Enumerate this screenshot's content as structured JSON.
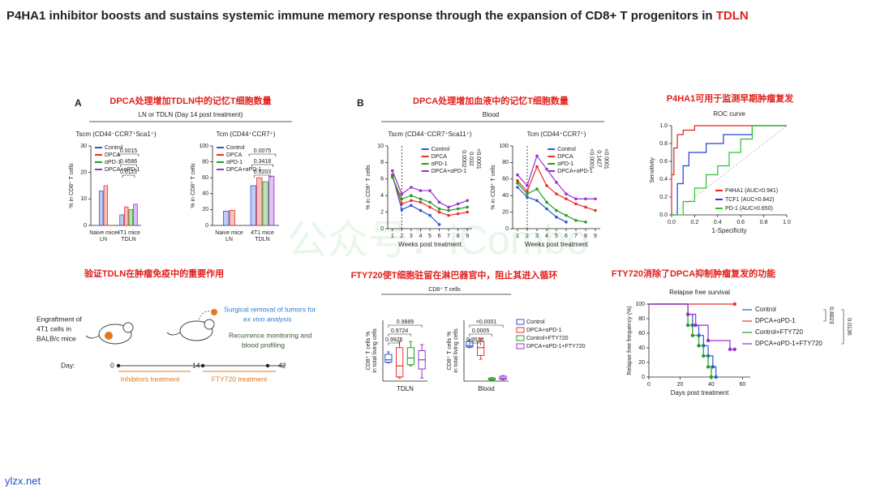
{
  "title": "P4HA1 inhibitor boosts and sustains systemic immune memory response through the expansion of CD8+ T progenitors in ",
  "title_highlight": "TDLN",
  "watermark": "公众号：iCombo",
  "footer": "ylzx.net",
  "sections": {
    "a": {
      "letter": "A",
      "heading": "DPCA处理增加TDLN中的记忆T细胞数量",
      "subtitle": "LN or TDLN (Day 14 post treatment)"
    },
    "b": {
      "letter": "B",
      "heading": "DPCA处理增加血液中的记忆T细胞数量",
      "subtitle": "Blood"
    },
    "roc": {
      "heading": "P4HA1可用于监测早期肿瘤复发"
    },
    "tdln": {
      "heading": "验证TDLN在肿瘤免疫中的重要作用"
    },
    "fty": {
      "heading": "FTY720使T细胞驻留在淋巴器官中，阻止其进入循环",
      "subtitle": "CD8⁺ T cells"
    },
    "rfs": {
      "heading": "FTY720消除了DPCA抑制肿瘤复发的功能"
    }
  },
  "diagram": {
    "engraftment": [
      "Engraftment of",
      "4T1 cells in",
      "BALB/c mice"
    ],
    "surgery": [
      "Surgical removal of tumors for",
      "ex vivo analysis"
    ],
    "monitoring": [
      "Recurrence monitoring and",
      "blood profiling"
    ],
    "day_label": "Day:",
    "days": [
      0,
      14,
      42
    ],
    "treatments": [
      "Inhibitors treatment",
      "FTY720 treatment"
    ]
  },
  "charts": [
    {
      "type": "bar",
      "title": "Tscm (CD44⁻CCR7⁺Sca1⁺)",
      "y_label": "% in CD8⁺ T cells",
      "categories": [
        [
          "Naive mice",
          "LN"
        ],
        [
          "4T1 mice",
          "TDLN"
        ]
      ],
      "series": [
        {
          "name": "Control",
          "color": "#2f55d4",
          "values": [
            13,
            4
          ]
        },
        {
          "name": "DPCA",
          "color": "#e8312b",
          "values": [
            15,
            7
          ]
        },
        {
          "name": "αPD-1",
          "color": "#20a020",
          "values": [
            null,
            6
          ]
        },
        {
          "name": "DPCA+αPD-1",
          "color": "#9b2fd0",
          "values": [
            null,
            8
          ]
        }
      ],
      "ylim": [
        0,
        30
      ],
      "yticks": [
        0,
        10,
        20,
        30
      ],
      "legend": "upper left",
      "comparisons": [
        "0.0015",
        "0.4586",
        "0.0113"
      ]
    },
    {
      "type": "bar",
      "title": "Tcm (CD44⁺CCR7⁺)",
      "y_label": "% in CD8⁺ T cells",
      "categories": [
        [
          "Naive mice",
          "LN"
        ],
        [
          "4T1 mice",
          "TDLN"
        ]
      ],
      "series": [
        {
          "name": "Control",
          "color": "#2f55d4",
          "values": [
            18,
            50
          ]
        },
        {
          "name": "DPCA",
          "color": "#e8312b",
          "values": [
            19,
            60
          ]
        },
        {
          "name": "αPD-1",
          "color": "#20a020",
          "values": [
            null,
            55
          ]
        },
        {
          "name": "DPCA+αPD-1",
          "color": "#9b2fd0",
          "values": [
            null,
            62
          ]
        }
      ],
      "ylim": [
        0,
        100
      ],
      "yticks": [
        0,
        20,
        40,
        60,
        80,
        100
      ],
      "legend": "upper left",
      "comparisons": [
        "0.0075",
        "0.3418",
        "0.0203"
      ]
    },
    {
      "type": "line",
      "title": "Tscm (CD44⁻CCR7⁺Sca11⁺)",
      "y_label": "% in CD8⁺ T cells",
      "x_label": "Weeks post treatment",
      "x": [
        1,
        2,
        3,
        4,
        5,
        6,
        7,
        8,
        9
      ],
      "xlim": [
        0.5,
        9.5
      ],
      "xticks": [
        1,
        2,
        3,
        4,
        5,
        6,
        7,
        8,
        9
      ],
      "ylim": [
        0,
        10
      ],
      "yticks": [
        0,
        2,
        4,
        6,
        8,
        10
      ],
      "vline": 2,
      "markers": true,
      "legend": "upper center",
      "series": [
        {
          "name": "Control",
          "color": "#2f55d4",
          "values": [
            6.5,
            2.3,
            2.8,
            2.2,
            1.6,
            0.5,
            null,
            null,
            null
          ]
        },
        {
          "name": "DPCA",
          "color": "#e8312b",
          "values": [
            6.4,
            3.0,
            3.4,
            3.2,
            2.6,
            2.0,
            1.6,
            1.8,
            2.0
          ]
        },
        {
          "name": "αPD-1",
          "color": "#20a020",
          "values": [
            6.2,
            3.6,
            4.0,
            3.6,
            3.2,
            2.4,
            2.2,
            2.4,
            2.6
          ]
        },
        {
          "name": "DPCA+αPD-1",
          "color": "#9b2fd0",
          "values": [
            7.0,
            4.2,
            5.0,
            4.6,
            4.6,
            3.2,
            2.6,
            3.0,
            3.4
          ]
        }
      ],
      "comparisons": [
        "0.0002",
        "0.032",
        "<0.0001"
      ]
    },
    {
      "type": "line",
      "title": "Tcm (CD44⁺CCR7⁺)",
      "y_label": "% in CD8⁺ T cells",
      "x_label": "Weeks post treatment",
      "x": [
        1,
        2,
        3,
        4,
        5,
        6,
        7,
        8,
        9
      ],
      "xlim": [
        0.5,
        9.5
      ],
      "xticks": [
        1,
        2,
        3,
        4,
        5,
        6,
        7,
        8,
        9
      ],
      "ylim": [
        0,
        100
      ],
      "yticks": [
        0,
        20,
        40,
        60,
        80,
        100
      ],
      "vline": 2,
      "markers": true,
      "legend": "upper center",
      "series": [
        {
          "name": "Control",
          "color": "#2f55d4",
          "values": [
            50,
            38,
            34,
            24,
            14,
            8,
            null,
            null,
            null
          ]
        },
        {
          "name": "DPCA",
          "color": "#e8312b",
          "values": [
            58,
            45,
            75,
            52,
            42,
            36,
            30,
            26,
            22
          ]
        },
        {
          "name": "αPD-1",
          "color": "#20a020",
          "values": [
            55,
            42,
            48,
            32,
            22,
            16,
            10,
            8,
            null
          ]
        },
        {
          "name": "DPCA+αPD-1",
          "color": "#9b2fd0",
          "values": [
            65,
            52,
            88,
            72,
            56,
            42,
            36,
            36,
            36
          ]
        }
      ],
      "comparisons": [
        "<0.0001",
        "0.1427",
        "<0.0001"
      ]
    },
    {
      "type": "line",
      "title": "ROC curve",
      "y_label": "Sensitivity",
      "x_label": "1-Specificity",
      "xlim": [
        0,
        1
      ],
      "ylim": [
        0,
        1
      ],
      "xticks": [
        {
          "value": 0,
          "label": "0.0"
        },
        0.2,
        0.4,
        0.6,
        0.8,
        {
          "value": 1,
          "label": "1.0"
        }
      ],
      "yticks": [
        {
          "value": 0,
          "label": "0.0"
        },
        0.2,
        0.4,
        0.6,
        0.8,
        {
          "value": 1,
          "label": "1.0"
        }
      ],
      "diagonal": true,
      "legend": "lower right",
      "series": [
        {
          "name": "P4HA1 (AUC=0.941)",
          "color": "#e8201c",
          "x": [
            0,
            0,
            0.02,
            0.02,
            0.05,
            0.05,
            0.1,
            0.1,
            0.2,
            0.2,
            1
          ],
          "values": [
            0,
            0.45,
            0.45,
            0.75,
            0.75,
            0.9,
            0.9,
            0.95,
            0.95,
            1,
            1
          ]
        },
        {
          "name": "TCF1 (AUC=0.842)",
          "color": "#2040e0",
          "x": [
            0,
            0.05,
            0.05,
            0.1,
            0.1,
            0.15,
            0.15,
            0.3,
            0.3,
            0.45,
            0.45,
            0.7,
            0.7,
            1
          ],
          "values": [
            0,
            0,
            0.35,
            0.35,
            0.55,
            0.55,
            0.7,
            0.7,
            0.8,
            0.8,
            0.9,
            0.9,
            1,
            1
          ]
        },
        {
          "name": "PD-1 (AUC=0.650)",
          "color": "#30c030",
          "x": [
            0,
            0.1,
            0.1,
            0.2,
            0.2,
            0.3,
            0.3,
            0.4,
            0.4,
            0.5,
            0.5,
            0.6,
            0.6,
            0.7,
            0.7,
            1
          ],
          "values": [
            0,
            0,
            0.15,
            0.15,
            0.3,
            0.3,
            0.45,
            0.45,
            0.55,
            0.55,
            0.7,
            0.7,
            0.85,
            0.85,
            1,
            1
          ]
        }
      ]
    },
    {
      "type": "box",
      "x_label": "TDLN",
      "y_label": [
        "CD8⁺ T cells %",
        "in total living cells"
      ],
      "ylim": [
        0,
        10
      ],
      "series": [
        {
          "color": "#2f55d4",
          "min": 3.0,
          "q1": 3.1,
          "median": 3.5,
          "q3": 4.4,
          "max": 4.8
        },
        {
          "color": "#e8312b",
          "min": 0.5,
          "q1": 0.7,
          "median": 2.5,
          "q3": 5.5,
          "max": 6.5
        },
        {
          "color": "#20a020",
          "min": 2.5,
          "q1": 2.7,
          "median": 3.8,
          "q3": 5.5,
          "max": 6.5
        },
        {
          "color": "#9b2fd0",
          "min": 0.5,
          "q1": 2.0,
          "median": 3.5,
          "q3": 5.0,
          "max": 6.0
        }
      ],
      "comparisons": [
        "0.9889",
        "0.9724",
        "0.9926"
      ]
    },
    {
      "type": "box",
      "x_label": "Blood",
      "y_label": [
        "CD8⁺ T cells %",
        "in total living cells"
      ],
      "ylim": [
        0,
        10
      ],
      "legend": "outside right",
      "series": [
        {
          "name": "Control",
          "color": "#2f55d4",
          "min": 5.5,
          "q1": 5.6,
          "median": 5.8,
          "q3": 6.5,
          "max": 6.8
        },
        {
          "name": "DPCA+αPD-1",
          "color": "#e8312b",
          "min": 3.6,
          "q1": 4.2,
          "median": 5.5,
          "q3": 6.5,
          "max": 7.0
        },
        {
          "name": "Control+FTY720",
          "color": "#20a020",
          "min": 0.1,
          "q1": 0.2,
          "median": 0.3,
          "q3": 0.5,
          "max": 0.6
        },
        {
          "name": "DPCA+αPD-1+FTY720",
          "color": "#9b2fd0",
          "min": 0.2,
          "q1": 0.3,
          "median": 0.5,
          "q3": 0.8,
          "max": 0.9
        }
      ],
      "comparisons": [
        "<0.0001",
        "0.0005",
        "0.9533"
      ]
    },
    {
      "type": "step",
      "title": "Relapse free survival",
      "y_label": "Relapse free frequency (%)",
      "x_label": "Days post treatment",
      "xlim": [
        0,
        65
      ],
      "xticks": [
        0,
        20,
        40,
        60
      ],
      "ylim": [
        0,
        100
      ],
      "yticks": [
        0,
        20,
        40,
        60,
        80,
        100
      ],
      "legend": "outside right",
      "series": [
        {
          "name": "Control",
          "color": "#2f55d4",
          "x": [
            0,
            25,
            28,
            32,
            35,
            38,
            41,
            43
          ],
          "values": [
            100,
            86,
            71,
            57,
            43,
            29,
            14,
            0
          ]
        },
        {
          "name": "DPCA+αPD-1",
          "color": "#e8312b",
          "x": [
            0,
            55
          ],
          "values": [
            100,
            100
          ]
        },
        {
          "name": "Control+FTY720",
          "color": "#20a020",
          "x": [
            0,
            25,
            28,
            32,
            35,
            38,
            40
          ],
          "values": [
            100,
            71,
            57,
            43,
            29,
            14,
            0
          ]
        },
        {
          "name": "DPCA+αPD-1+FTY720",
          "color": "#9b2fd0",
          "x": [
            0,
            25,
            30,
            38,
            52,
            55
          ],
          "values": [
            100,
            86,
            71,
            50,
            38,
            38
          ]
        }
      ],
      "comparisons": [
        "0.8823",
        "0.0136"
      ]
    }
  ]
}
